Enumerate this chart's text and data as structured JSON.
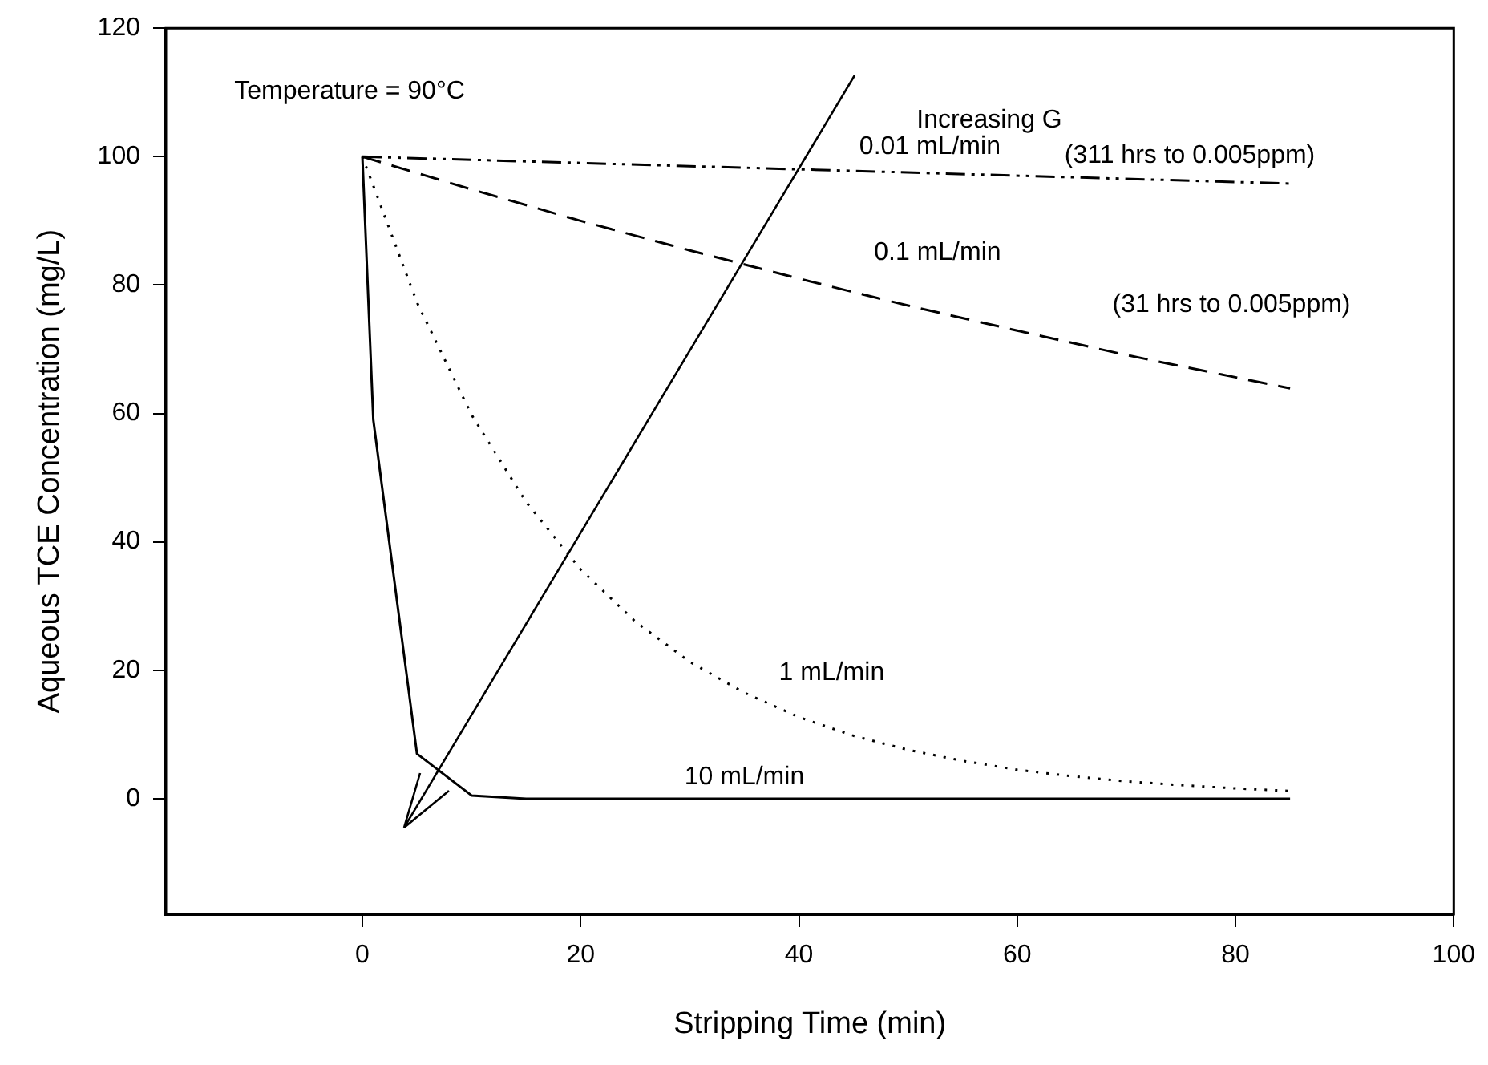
{
  "chart_data": {
    "type": "line",
    "xlabel": "Stripping Time (min)",
    "ylabel": "Aqueous TCE Concentration (mg/L)",
    "xlim": [
      -18,
      100
    ],
    "xticks": [
      0,
      20,
      40,
      60,
      80,
      100
    ],
    "ylim": [
      -18,
      120
    ],
    "yticks": [
      0,
      20,
      40,
      60,
      80,
      100,
      120
    ],
    "grid": false,
    "legend": false,
    "marker": "none",
    "series": [
      {
        "name": "0.01 mL/min",
        "color": "#000000",
        "line_style": "dashdot",
        "x": [
          0,
          85
        ],
        "values": [
          100,
          95.8
        ]
      },
      {
        "name": "0.1 mL/min",
        "color": "#000000",
        "line_style": "dashed",
        "x": [
          0,
          10,
          20,
          30,
          40,
          50,
          60,
          70,
          85
        ],
        "values": [
          100,
          94.9,
          90.0,
          85.4,
          81.0,
          76.8,
          72.9,
          69.1,
          63.9
        ]
      },
      {
        "name": "1 mL/min",
        "color": "#000000",
        "line_style": "dotted",
        "x": [
          0,
          5,
          10,
          15,
          20,
          25,
          30,
          35,
          40,
          45,
          50,
          55,
          60,
          65,
          70,
          75,
          80,
          85
        ],
        "values": [
          100,
          77.3,
          59.8,
          46.2,
          35.7,
          27.6,
          21.3,
          16.5,
          12.7,
          9.8,
          7.6,
          5.9,
          4.5,
          3.5,
          2.7,
          2.1,
          1.6,
          1.2
        ]
      },
      {
        "name": "10 mL/min",
        "color": "#000000",
        "line_style": "solid",
        "x": [
          0,
          1,
          5,
          10,
          15,
          85
        ],
        "values": [
          100,
          59,
          7,
          0.5,
          0,
          0
        ]
      }
    ],
    "annotations": [
      "Temperature = 90°C",
      "Increasing G",
      "(311 hrs to 0.005ppm)",
      "(31 hrs to 0.005ppm)"
    ]
  }
}
